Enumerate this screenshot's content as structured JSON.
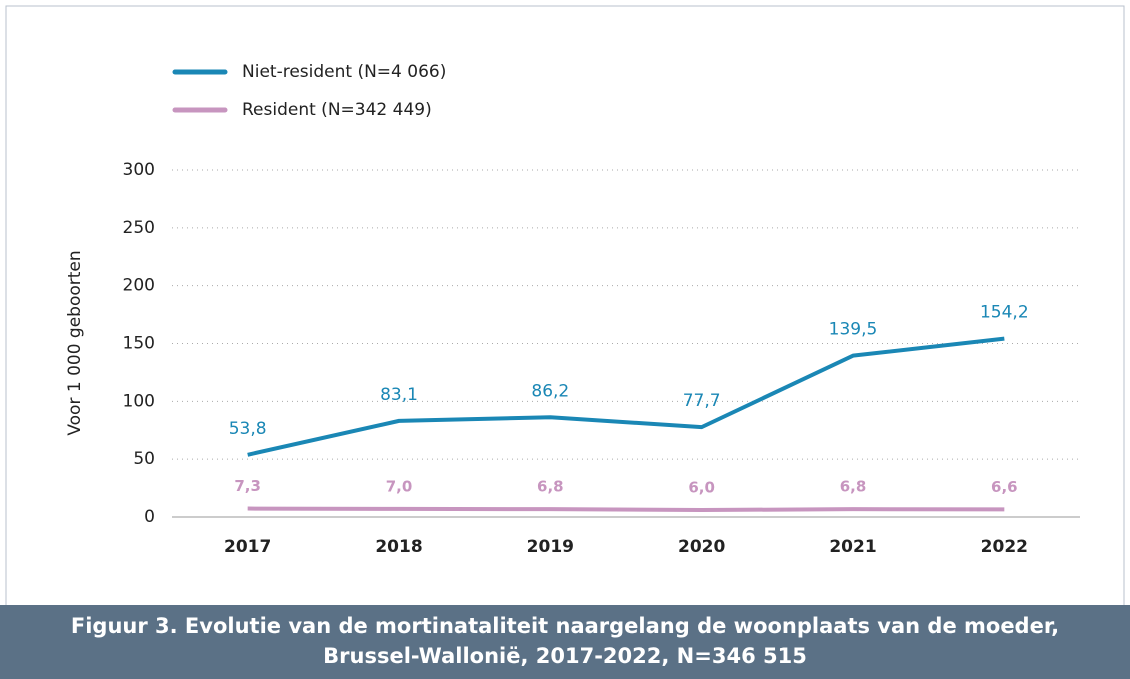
{
  "chart_data": {
    "type": "line",
    "title": "Figuur 3. Evolutie van de mortinataliteit naargelang de woonplaats van de moeder, Brussel-Wallonië, 2017-2022, N=346 515",
    "y_label": "Voor 1 000 geboorten",
    "categories": [
      "2017",
      "2018",
      "2019",
      "2020",
      "2021",
      "2022"
    ],
    "series": [
      {
        "name": "Niet-resident (N=4 066)",
        "color": "#1a87b5",
        "values": [
          53.8,
          83.1,
          86.2,
          77.7,
          139.5,
          154.2
        ],
        "value_labels": [
          "53,8",
          "83,1",
          "86,2",
          "77,7",
          "139,5",
          "154,2"
        ]
      },
      {
        "name": "Resident (N=342 449)",
        "color": "#c795bf",
        "values": [
          7.3,
          7.0,
          6.8,
          6.0,
          6.8,
          6.6
        ],
        "value_labels": [
          "7,3",
          "7,0",
          "6,8",
          "6,0",
          "6,8",
          "6,6"
        ]
      }
    ],
    "ylim": [
      0,
      300
    ],
    "yticks": [
      0,
      50,
      100,
      150,
      200,
      250,
      300
    ],
    "grid": true,
    "legend": "top-left"
  }
}
